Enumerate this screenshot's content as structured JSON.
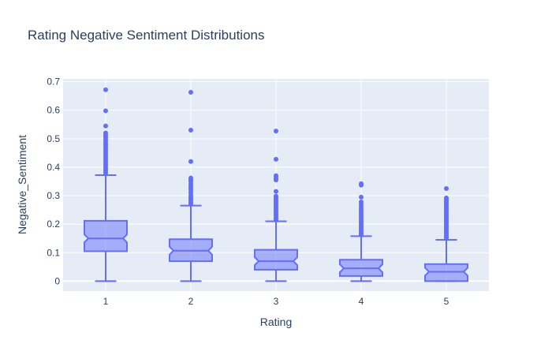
{
  "chart_data": {
    "type": "box",
    "title": "Rating Negative Sentiment Distributions",
    "xlabel": "Rating",
    "ylabel": "Negative_Sentiment",
    "categories": [
      "1",
      "2",
      "3",
      "4",
      "5"
    ],
    "ylim": [
      -0.035,
      0.71
    ],
    "yticks": [
      0,
      0.1,
      0.2,
      0.3,
      0.4,
      0.5,
      0.6,
      0.7
    ],
    "ytick_labels": [
      "0",
      "0.1",
      "0.2",
      "0.3",
      "0.4",
      "0.5",
      "0.6",
      "0.7"
    ],
    "grid": true,
    "notched": true,
    "colors": {
      "series": "#636efa",
      "fill": "#636efa",
      "plot_bg": "#e5ecf6",
      "grid": "#ffffff",
      "text": "#2a3f5f"
    },
    "boxes": [
      {
        "category": "1",
        "min": 0.0,
        "q1": 0.105,
        "median": 0.15,
        "q3": 0.212,
        "upper_fence": 0.372,
        "outliers": [
          0.38,
          0.388,
          0.395,
          0.402,
          0.41,
          0.418,
          0.425,
          0.432,
          0.44,
          0.448,
          0.455,
          0.462,
          0.47,
          0.478,
          0.483,
          0.49,
          0.498,
          0.505,
          0.512,
          0.52,
          0.545,
          0.598,
          0.672
        ]
      },
      {
        "category": "2",
        "min": 0.0,
        "q1": 0.07,
        "median": 0.107,
        "q3": 0.147,
        "upper_fence": 0.265,
        "outliers": [
          0.27,
          0.276,
          0.282,
          0.288,
          0.294,
          0.3,
          0.31,
          0.318,
          0.325,
          0.333,
          0.34,
          0.35,
          0.355,
          0.362,
          0.42,
          0.53,
          0.663
        ]
      },
      {
        "category": "3",
        "min": 0.0,
        "q1": 0.04,
        "median": 0.07,
        "q3": 0.11,
        "upper_fence": 0.21,
        "outliers": [
          0.215,
          0.22,
          0.226,
          0.232,
          0.238,
          0.244,
          0.25,
          0.256,
          0.262,
          0.268,
          0.274,
          0.28,
          0.286,
          0.292,
          0.298,
          0.315,
          0.355,
          0.362,
          0.37,
          0.428,
          0.527
        ]
      },
      {
        "category": "4",
        "min": 0.0,
        "q1": 0.018,
        "median": 0.045,
        "q3": 0.075,
        "upper_fence": 0.158,
        "outliers": [
          0.162,
          0.167,
          0.172,
          0.178,
          0.184,
          0.19,
          0.196,
          0.202,
          0.208,
          0.214,
          0.22,
          0.228,
          0.236,
          0.244,
          0.252,
          0.26,
          0.268,
          0.278,
          0.295,
          0.337,
          0.342
        ]
      },
      {
        "category": "5",
        "min": 0.0,
        "q1": 0.0,
        "median": 0.033,
        "q3": 0.06,
        "upper_fence": 0.145,
        "outliers": [
          0.15,
          0.155,
          0.16,
          0.166,
          0.172,
          0.178,
          0.184,
          0.19,
          0.196,
          0.202,
          0.208,
          0.214,
          0.22,
          0.226,
          0.232,
          0.238,
          0.244,
          0.25,
          0.256,
          0.262,
          0.268,
          0.274,
          0.28,
          0.286,
          0.292,
          0.325
        ]
      }
    ]
  }
}
